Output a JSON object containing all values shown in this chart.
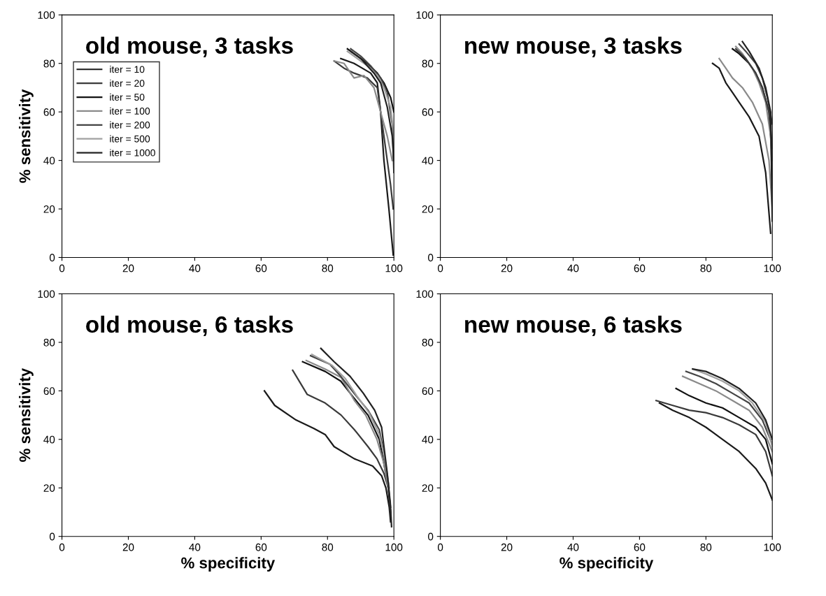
{
  "chart_data": [
    {
      "type": "line",
      "title": "old mouse, 3 tasks",
      "ylabel": "% sensitivity",
      "xlim": [
        0,
        100
      ],
      "ylim": [
        0,
        100
      ],
      "xticks": [
        0,
        20,
        40,
        60,
        80,
        100
      ],
      "yticks": [
        0,
        20,
        40,
        60,
        80,
        100
      ],
      "grid": false,
      "legend": "left",
      "series": [
        {
          "name": "iter = 10",
          "color": "#1a1a1a",
          "x": [
            84,
            88,
            93,
            95,
            96,
            97,
            98.5,
            99.8
          ],
          "values": [
            82,
            80,
            76,
            72,
            60,
            40,
            20,
            1
          ]
        },
        {
          "name": "iter = 20",
          "color": "#3a3a3a",
          "x": [
            82,
            85,
            88,
            92,
            95,
            96.5,
            98,
            99,
            99.8
          ],
          "values": [
            81,
            78,
            76,
            74,
            70,
            55,
            40,
            30,
            20
          ]
        },
        {
          "name": "iter = 50",
          "color": "#111111",
          "x": [
            86,
            88,
            92,
            95,
            97,
            99,
            100
          ],
          "values": [
            86,
            84,
            80,
            76,
            72,
            66,
            60
          ]
        },
        {
          "name": "iter = 100",
          "color": "#8a8a8a",
          "x": [
            82,
            85,
            88,
            91,
            94,
            96,
            98,
            99.5
          ],
          "values": [
            81,
            80,
            74,
            75,
            70,
            60,
            50,
            40
          ]
        },
        {
          "name": "iter = 200",
          "color": "#444444",
          "x": [
            87,
            90,
            93,
            96,
            98,
            99.5,
            100
          ],
          "values": [
            86,
            83,
            79,
            74,
            68,
            55,
            35
          ]
        },
        {
          "name": "iter = 500",
          "color": "#a0a0a0",
          "x": [
            86,
            89,
            92,
            95,
            97,
            99,
            100
          ],
          "values": [
            85,
            82,
            79,
            75,
            70,
            62,
            50
          ]
        },
        {
          "name": "iter = 1000",
          "color": "#222222",
          "x": [
            87,
            90,
            94,
            96,
            98,
            99.5,
            100
          ],
          "values": [
            85,
            82,
            76,
            72,
            62,
            50,
            40
          ]
        }
      ]
    },
    {
      "type": "line",
      "title": "new mouse, 3 tasks",
      "xlim": [
        0,
        100
      ],
      "ylim": [
        0,
        100
      ],
      "xticks": [
        0,
        20,
        40,
        60,
        80,
        100
      ],
      "yticks": [
        0,
        20,
        40,
        60,
        80,
        100
      ],
      "grid": false,
      "series": [
        {
          "color": "#1a1a1a",
          "x": [
            82,
            84,
            86,
            88,
            90,
            93,
            96,
            98,
            99.5
          ],
          "values": [
            80,
            78,
            72,
            68,
            64,
            58,
            50,
            35,
            10
          ]
        },
        {
          "color": "#8a8a8a",
          "x": [
            84,
            86,
            88,
            91,
            94,
            97,
            99,
            100
          ],
          "values": [
            82,
            78,
            74,
            70,
            64,
            55,
            40,
            20
          ]
        },
        {
          "color": "#111111",
          "x": [
            88,
            90,
            93,
            95,
            97,
            99,
            100
          ],
          "values": [
            86,
            84,
            80,
            76,
            70,
            60,
            40
          ]
        },
        {
          "color": "#8a8a8a",
          "x": [
            89,
            91,
            94,
            96,
            98,
            99.5,
            100
          ],
          "values": [
            87,
            84,
            78,
            72,
            64,
            50,
            30
          ]
        },
        {
          "color": "#444444",
          "x": [
            90,
            92,
            95,
            97,
            98.5,
            100
          ],
          "values": [
            88,
            85,
            80,
            74,
            66,
            55
          ]
        },
        {
          "color": "#3a3a3a",
          "x": [
            89,
            92,
            95,
            97,
            99,
            100
          ],
          "values": [
            86,
            82,
            76,
            70,
            60,
            45
          ]
        },
        {
          "color": "#222222",
          "x": [
            91,
            93,
            96,
            98,
            99.5,
            100
          ],
          "values": [
            89,
            85,
            78,
            70,
            60,
            15
          ]
        }
      ]
    },
    {
      "type": "line",
      "title": "old mouse, 6 tasks",
      "xlabel": "% specificity",
      "ylabel": "% sensitivity",
      "xlim": [
        0,
        100
      ],
      "ylim": [
        0,
        100
      ],
      "xticks": [
        0,
        20,
        40,
        60,
        80,
        100
      ],
      "yticks": [
        0,
        20,
        40,
        60,
        80,
        100
      ],
      "grid": false,
      "series": [
        {
          "color": "#1a1a1a",
          "x": [
            61,
            64.1,
            70.5,
            75.9,
            79.3,
            82,
            88.1,
            93.6,
            96.3,
            97.6,
            98.6,
            99
          ],
          "values": [
            60,
            54,
            48,
            44.5,
            42,
            37,
            32,
            29,
            25,
            20,
            12,
            6
          ]
        },
        {
          "color": "#3a3a3a",
          "x": [
            69.5,
            73.9,
            79.3,
            84.1,
            88.1,
            92.2,
            94.9,
            97,
            98.3,
            99
          ],
          "values": [
            68.5,
            58.5,
            55,
            50,
            44,
            37,
            32,
            26,
            20,
            12
          ]
        },
        {
          "color": "#111111",
          "x": [
            72.5,
            79.3,
            84,
            88,
            92.2,
            95.6,
            97,
            98.3,
            99
          ],
          "values": [
            72,
            68,
            64,
            57,
            50,
            40,
            30,
            20,
            10
          ]
        },
        {
          "color": "#8a8a8a",
          "x": [
            73.6,
            79.3,
            84.1,
            88.1,
            91.5,
            94.9,
            97,
            98.5
          ],
          "values": [
            72.5,
            69,
            65.5,
            56,
            50,
            40,
            30,
            18
          ]
        },
        {
          "color": "#444444",
          "x": [
            74.9,
            80.7,
            84,
            88,
            92.2,
            95.6,
            97,
            98.3,
            99.1
          ],
          "values": [
            74.5,
            71,
            66,
            59,
            52,
            44,
            34,
            22,
            8
          ]
        },
        {
          "color": "#a0a0a0",
          "x": [
            75.3,
            81.4,
            85.4,
            88.8,
            92.5,
            95.6,
            97.3,
            98.6
          ],
          "values": [
            75,
            70.5,
            65,
            58,
            51,
            42,
            32,
            20
          ]
        },
        {
          "color": "#222222",
          "x": [
            78,
            82,
            86.8,
            90.8,
            94.2,
            96.3,
            97,
            98,
            98.9,
            99.3
          ],
          "values": [
            77.5,
            72,
            66,
            59,
            52,
            45,
            37,
            26,
            14,
            4
          ]
        }
      ]
    },
    {
      "type": "line",
      "title": "new mouse, 6 tasks",
      "xlabel": "% specificity",
      "xlim": [
        0,
        100
      ],
      "ylim": [
        0,
        100
      ],
      "xticks": [
        0,
        20,
        40,
        60,
        80,
        100
      ],
      "yticks": [
        0,
        20,
        40,
        60,
        80,
        100
      ],
      "grid": false,
      "series": [
        {
          "color": "#1a1a1a",
          "x": [
            66,
            70,
            75,
            80,
            85,
            90,
            95,
            98,
            100
          ],
          "values": [
            55,
            52,
            49,
            45,
            40,
            35,
            28,
            22,
            15
          ]
        },
        {
          "color": "#3a3a3a",
          "x": [
            65,
            70,
            75,
            80,
            85,
            90,
            95,
            98,
            100
          ],
          "values": [
            56,
            54,
            52,
            51,
            49,
            46,
            42,
            35,
            25
          ]
        },
        {
          "color": "#111111",
          "x": [
            71,
            75,
            80,
            85,
            90,
            95,
            98,
            100
          ],
          "values": [
            61,
            58,
            55,
            53,
            49,
            45,
            40,
            30
          ]
        },
        {
          "color": "#8a8a8a",
          "x": [
            73,
            78,
            83,
            88,
            93,
            97,
            100
          ],
          "values": [
            66,
            63,
            60,
            56,
            52,
            45,
            35
          ]
        },
        {
          "color": "#444444",
          "x": [
            74,
            78,
            83,
            88,
            93,
            97,
            100
          ],
          "values": [
            68,
            66,
            63,
            59,
            55,
            48,
            38
          ]
        },
        {
          "color": "#a0a0a0",
          "x": [
            76,
            80,
            85,
            90,
            94,
            98,
            100
          ],
          "values": [
            69,
            67,
            64,
            60,
            55,
            47,
            37
          ]
        },
        {
          "color": "#222222",
          "x": [
            76,
            80,
            85,
            90,
            95,
            98,
            100
          ],
          "values": [
            69,
            68,
            65,
            61,
            55,
            48,
            40
          ]
        }
      ]
    }
  ]
}
